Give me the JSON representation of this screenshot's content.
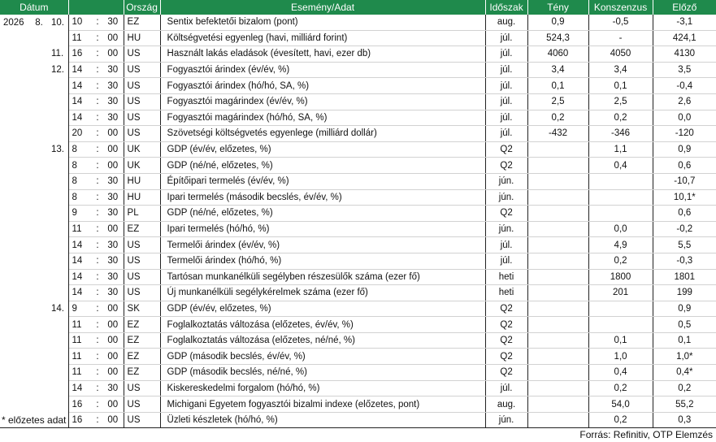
{
  "headers": {
    "date": "Dátum",
    "country": "Ország",
    "event": "Esemény/Adat",
    "period": "Időszak",
    "actual": "Tény",
    "consensus": "Konszenzus",
    "previous": "Előző"
  },
  "rows": [
    {
      "year": "2026",
      "month": "8.",
      "day": "10.",
      "hour": "10",
      "colon": ":",
      "min": "30",
      "country": "EZ",
      "event": "Sentix befektetői bizalom (pont)",
      "period": "aug.",
      "actual": "0,9",
      "consensus": "-0,5",
      "previous": "-3,1"
    },
    {
      "year": "",
      "month": "",
      "day": "",
      "hour": "11",
      "colon": ":",
      "min": "00",
      "country": "HU",
      "event": "Költségvetési egyenleg (havi, milliárd forint)",
      "period": "júl.",
      "actual": "524,3",
      "consensus": "-",
      "previous": "424,1"
    },
    {
      "year": "",
      "month": "",
      "day": "11.",
      "hour": "16",
      "colon": ":",
      "min": "00",
      "country": "US",
      "event": "Használt lakás eladások (évesített, havi, ezer db)",
      "period": "júl.",
      "actual": "4060",
      "consensus": "4050",
      "previous": "4130"
    },
    {
      "year": "",
      "month": "",
      "day": "12.",
      "hour": "14",
      "colon": ":",
      "min": "30",
      "country": "US",
      "event": "Fogyasztói árindex (év/év, %)",
      "period": "júl.",
      "actual": "3,4",
      "consensus": "3,4",
      "previous": "3,5"
    },
    {
      "year": "",
      "month": "",
      "day": "",
      "hour": "14",
      "colon": ":",
      "min": "30",
      "country": "US",
      "event": "Fogyasztói árindex (hó/hó, SA, %)",
      "period": "júl.",
      "actual": "0,1",
      "consensus": "0,1",
      "previous": "-0,4"
    },
    {
      "year": "",
      "month": "",
      "day": "",
      "hour": "14",
      "colon": ":",
      "min": "30",
      "country": "US",
      "event": "Fogyasztói magárindex (év/év, %)",
      "period": "júl.",
      "actual": "2,5",
      "consensus": "2,5",
      "previous": "2,6"
    },
    {
      "year": "",
      "month": "",
      "day": "",
      "hour": "14",
      "colon": ":",
      "min": "30",
      "country": "US",
      "event": "Fogyasztói magárindex (hó/hó, SA, %)",
      "period": "júl.",
      "actual": "0,2",
      "consensus": "0,2",
      "previous": "0,0"
    },
    {
      "year": "",
      "month": "",
      "day": "",
      "hour": "20",
      "colon": ":",
      "min": "00",
      "country": "US",
      "event": "Szövetségi költségvetés egyenlege (milliárd dollár)",
      "period": "júl.",
      "actual": "-432",
      "consensus": "-346",
      "previous": "-120"
    },
    {
      "year": "",
      "month": "",
      "day": "13.",
      "hour": "8",
      "colon": ":",
      "min": "00",
      "country": "UK",
      "event": "GDP (év/év, előzetes, %)",
      "period": "Q2",
      "actual": "",
      "consensus": "1,1",
      "previous": "0,9"
    },
    {
      "year": "",
      "month": "",
      "day": "",
      "hour": "8",
      "colon": ":",
      "min": "00",
      "country": "UK",
      "event": "GDP (né/né, előzetes, %)",
      "period": "Q2",
      "actual": "",
      "consensus": "0,4",
      "previous": "0,6"
    },
    {
      "year": "",
      "month": "",
      "day": "",
      "hour": "8",
      "colon": ":",
      "min": "30",
      "country": "HU",
      "event": "Építőipari termelés (év/év, %)",
      "period": "jún.",
      "actual": "",
      "consensus": "",
      "previous": "-10,7"
    },
    {
      "year": "",
      "month": "",
      "day": "",
      "hour": "8",
      "colon": ":",
      "min": "30",
      "country": "HU",
      "event": "Ipari termelés (második becslés, év/év, %)",
      "period": "jún.",
      "actual": "",
      "consensus": "",
      "previous": "10,1*"
    },
    {
      "year": "",
      "month": "",
      "day": "",
      "hour": "9",
      "colon": ":",
      "min": "30",
      "country": "PL",
      "event": "GDP (né/né, előzetes, %)",
      "period": "Q2",
      "actual": "",
      "consensus": "",
      "previous": "0,6"
    },
    {
      "year": "",
      "month": "",
      "day": "",
      "hour": "11",
      "colon": ":",
      "min": "00",
      "country": "EZ",
      "event": "Ipari termelés (hó/hó, %)",
      "period": "jún.",
      "actual": "",
      "consensus": "0,0",
      "previous": "-0,2"
    },
    {
      "year": "",
      "month": "",
      "day": "",
      "hour": "14",
      "colon": ":",
      "min": "30",
      "country": "US",
      "event": "Termelői árindex (év/év, %)",
      "period": "júl.",
      "actual": "",
      "consensus": "4,9",
      "previous": "5,5"
    },
    {
      "year": "",
      "month": "",
      "day": "",
      "hour": "14",
      "colon": ":",
      "min": "30",
      "country": "US",
      "event": "Termelői árindex (hó/hó, %)",
      "period": "júl.",
      "actual": "",
      "consensus": "0,2",
      "previous": "-0,3"
    },
    {
      "year": "",
      "month": "",
      "day": "",
      "hour": "14",
      "colon": ":",
      "min": "30",
      "country": "US",
      "event": "Tartósan munkanélküli segélyben részesülők száma (ezer fő)",
      "period": "heti",
      "actual": "",
      "consensus": "1800",
      "previous": "1801"
    },
    {
      "year": "",
      "month": "",
      "day": "",
      "hour": "14",
      "colon": ":",
      "min": "30",
      "country": "US",
      "event": "Új munkanélküli segélykérelmek száma (ezer fő)",
      "period": "heti",
      "actual": "",
      "consensus": "201",
      "previous": "199"
    },
    {
      "year": "",
      "month": "",
      "day": "14.",
      "hour": "9",
      "colon": ":",
      "min": "00",
      "country": "SK",
      "event": "GDP (év/év, előzetes, %)",
      "period": "Q2",
      "actual": "",
      "consensus": "",
      "previous": "0,9"
    },
    {
      "year": "",
      "month": "",
      "day": "",
      "hour": "11",
      "colon": ":",
      "min": "00",
      "country": "EZ",
      "event": "Foglalkoztatás változása (előzetes, év/év, %)",
      "period": "Q2",
      "actual": "",
      "consensus": "",
      "previous": "0,5"
    },
    {
      "year": "",
      "month": "",
      "day": "",
      "hour": "11",
      "colon": ":",
      "min": "00",
      "country": "EZ",
      "event": "Foglalkoztatás változása (előzetes, né/né, %)",
      "period": "Q2",
      "actual": "",
      "consensus": "0,1",
      "previous": "0,1"
    },
    {
      "year": "",
      "month": "",
      "day": "",
      "hour": "11",
      "colon": ":",
      "min": "00",
      "country": "EZ",
      "event": "GDP (második becslés, év/év, %)",
      "period": "Q2",
      "actual": "",
      "consensus": "1,0",
      "previous": "1,0*"
    },
    {
      "year": "",
      "month": "",
      "day": "",
      "hour": "11",
      "colon": ":",
      "min": "00",
      "country": "EZ",
      "event": "GDP (második becslés, né/né, %)",
      "period": "Q2",
      "actual": "",
      "consensus": "0,4",
      "previous": "0,4*"
    },
    {
      "year": "",
      "month": "",
      "day": "",
      "hour": "14",
      "colon": ":",
      "min": "30",
      "country": "US",
      "event": "Kiskereskedelmi forgalom (hó/hó, %)",
      "period": "júl.",
      "actual": "",
      "consensus": "0,2",
      "previous": "0,2"
    },
    {
      "year": "",
      "month": "",
      "day": "",
      "hour": "16",
      "colon": ":",
      "min": "00",
      "country": "US",
      "event": "Michigani Egyetem fogyasztói bizalmi indexe (előzetes, pont)",
      "period": "aug.",
      "actual": "",
      "consensus": "54,0",
      "previous": "55,2"
    },
    {
      "year": "",
      "month": "",
      "day": "",
      "hour": "16",
      "colon": ":",
      "min": "00",
      "country": "US",
      "event": "Üzleti készletek (hó/hó, %)",
      "period": "jún.",
      "actual": "",
      "consensus": "0,2",
      "previous": "0,3"
    }
  ],
  "footnote": "* előzetes adat",
  "source": "Forrás: Refinitiv, OTP Elemzés",
  "colors": {
    "header_bg": "#1f8a4c",
    "header_text": "#ffffff"
  }
}
